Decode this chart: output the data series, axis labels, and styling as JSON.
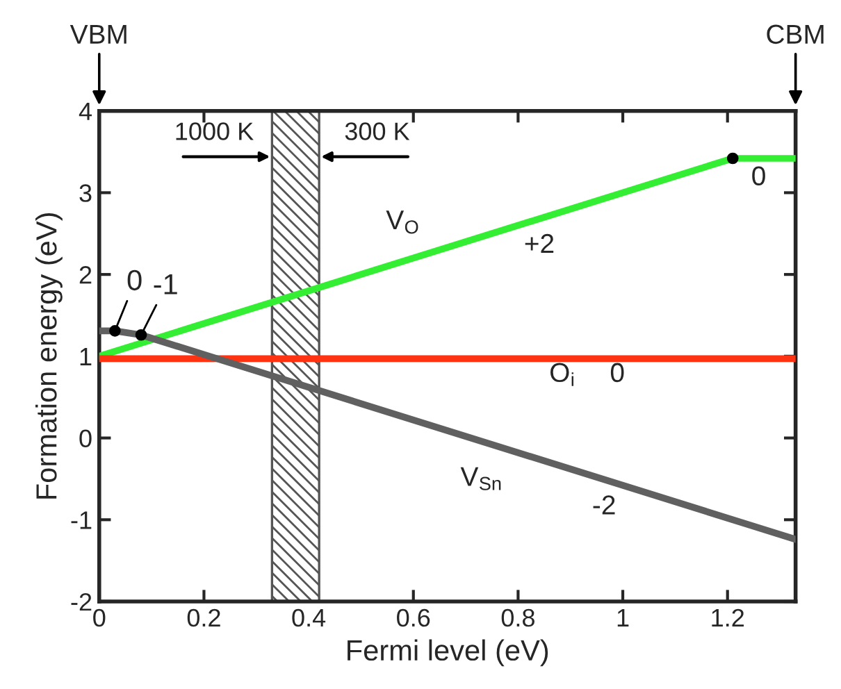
{
  "chart_data": {
    "type": "line",
    "xlabel": "Fermi level (eV)",
    "ylabel": "Formation energy (eV)",
    "xlim": [
      0,
      1.33
    ],
    "ylim": [
      -2,
      4
    ],
    "xticks": [
      0,
      0.2,
      0.4,
      0.6,
      0.8,
      1,
      1.2
    ],
    "yticks": [
      -2,
      -1,
      0,
      1,
      2,
      3,
      4
    ],
    "grid": false,
    "marker": "none",
    "line_style": "solid",
    "series": [
      {
        "color": "#33ee33",
        "x": [
          0,
          1.21,
          1.33
        ],
        "values": [
          1.0,
          3.42,
          3.42
        ]
      },
      {
        "color": "#ff3311",
        "x": [
          0,
          1.33
        ],
        "values": [
          0.97,
          0.97
        ]
      },
      {
        "color": "#606060",
        "x": [
          0,
          0.03,
          0.08,
          1.33
        ],
        "values": [
          1.31,
          1.31,
          1.26,
          -1.24
        ]
      },
      {
        "type": "scatter",
        "color": "#000000",
        "marker": "circle",
        "x": [
          0.03,
          0.08,
          1.21
        ],
        "values": [
          1.31,
          1.26,
          3.42
        ]
      }
    ],
    "bands": [
      {
        "axis": "x",
        "from": 0.33,
        "to": 0.42,
        "color": "#555555"
      }
    ],
    "annotations": [
      "VBM",
      "CBM",
      {
        "text": "1000 K",
        "x": 0.33,
        "y": 3.44
      },
      {
        "text": "300 K",
        "x": 0.42,
        "y": 3.44
      },
      "V$_{O}$",
      "+2",
      "0",
      "O$_{i}$",
      "0",
      "V$_{Sn}$",
      "-2",
      {
        "text": "0",
        "x": 0.03,
        "y": 1.31
      },
      {
        "text": "-1",
        "x": 0.08,
        "y": 1.26
      }
    ]
  }
}
